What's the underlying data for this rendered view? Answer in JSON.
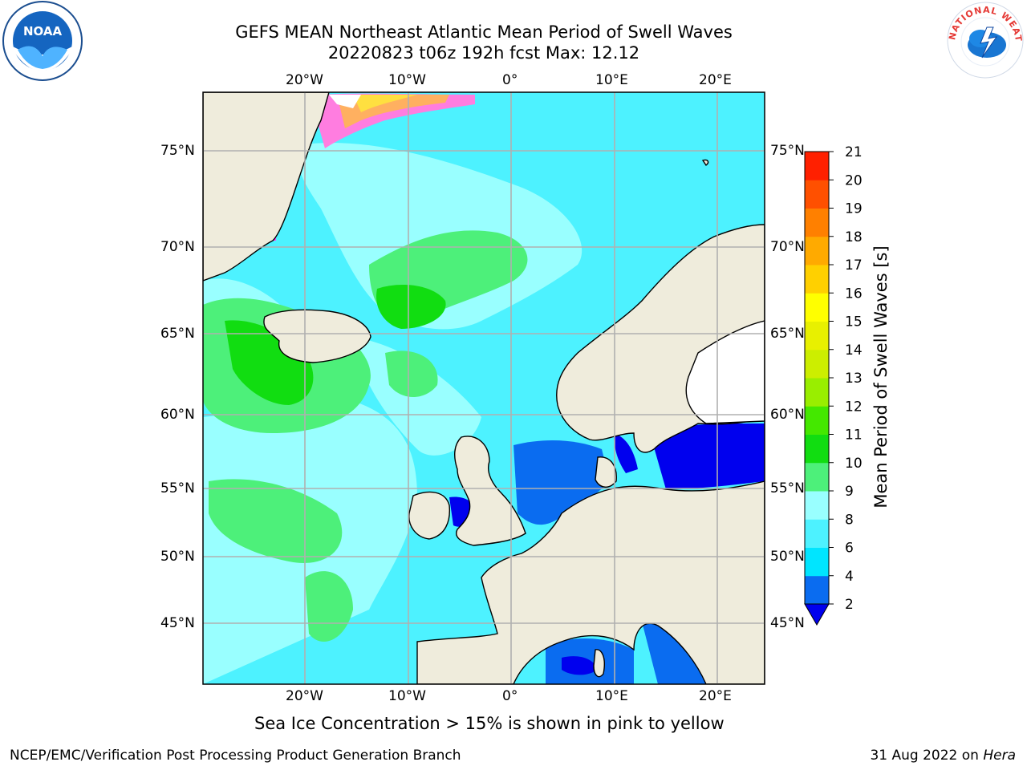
{
  "title": {
    "line1": "GEFS MEAN Northeast Atlantic Mean Period of Swell Waves",
    "line2": "20220823 t06z 192h fcst   Max: 12.12"
  },
  "map": {
    "lon_ticks": [
      "20°W",
      "10°W",
      "0°",
      "10°E",
      "20°E"
    ],
    "lat_ticks": [
      "75°N",
      "70°N",
      "65°N",
      "60°N",
      "55°N",
      "50°N",
      "45°N"
    ],
    "land_color": "#efecdc",
    "grid_color": "#b0b0b0"
  },
  "colorbar": {
    "label": "Mean Period of Swell Waves [s]",
    "ticks": [
      "2",
      "4",
      "6",
      "8",
      "9",
      "10",
      "11",
      "12",
      "13",
      "14",
      "15",
      "16",
      "17",
      "18",
      "19",
      "20",
      "21"
    ],
    "colors": [
      "#0a6cf0",
      "#00e5ff",
      "#4df2ff",
      "#99ffff",
      "#4df07a",
      "#11dd11",
      "#44e800",
      "#99ee00",
      "#ccee00",
      "#e8f000",
      "#ffff00",
      "#ffd000",
      "#ffaa00",
      "#ff8000",
      "#ff5000",
      "#ff2000"
    ],
    "under_color": "#0000ee"
  },
  "note": "Sea Ice Concentration > 15% is shown in pink to yellow",
  "footer": {
    "left": "NCEP/EMC/Verification Post Processing Product Generation Branch",
    "right_prefix": "31 Aug 2022 on ",
    "right_host": "Hera"
  },
  "logos": {
    "left": "NOAA",
    "right": "NATIONAL WEATHER SERVICE"
  }
}
